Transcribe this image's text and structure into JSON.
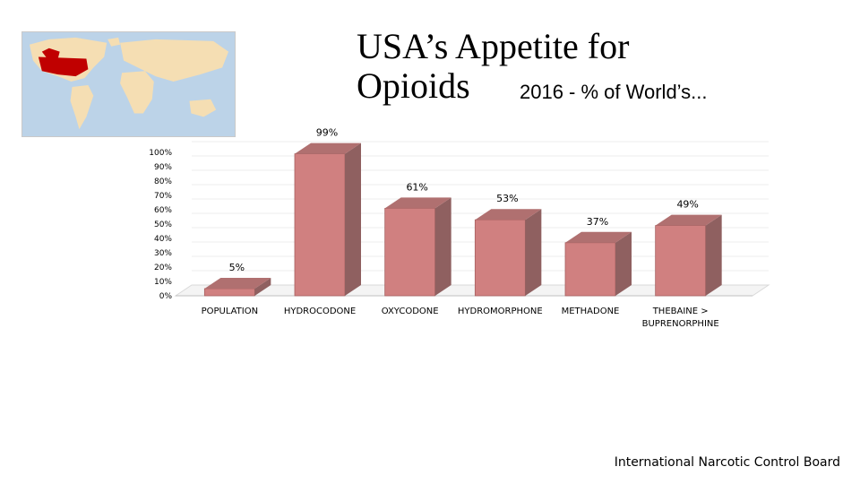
{
  "map": {
    "label": "World map with USA highlighted",
    "highlight_color": "#c00000",
    "land_color": "#f5deb3",
    "water_color": "#bcd3e8"
  },
  "title": "USA’s Appetite for Opioids",
  "chart_data": {
    "type": "bar",
    "title": "2016 - % of World’s...",
    "categories": [
      "POPULATION",
      "HYDROCODONE",
      "OXYCODONE",
      "HYDROMORPHONE",
      "METHADONE",
      "THEBAINE > BUPRENORPHINE"
    ],
    "values": [
      5,
      99,
      61,
      53,
      37,
      49
    ],
    "data_labels": [
      "5%",
      "99%",
      "61%",
      "53%",
      "37%",
      "49%"
    ],
    "ylim": [
      0,
      100
    ],
    "y_ticks": [
      "0%",
      "10%",
      "20%",
      "30%",
      "40%",
      "50%",
      "60%",
      "70%",
      "80%",
      "90%",
      "100%"
    ],
    "bar_color": "#d08080",
    "bar_side_color": "#8f6060",
    "bar_top_color": "#b07070",
    "grid": true,
    "style": "3d"
  },
  "source": "International Narcotic Control Board"
}
